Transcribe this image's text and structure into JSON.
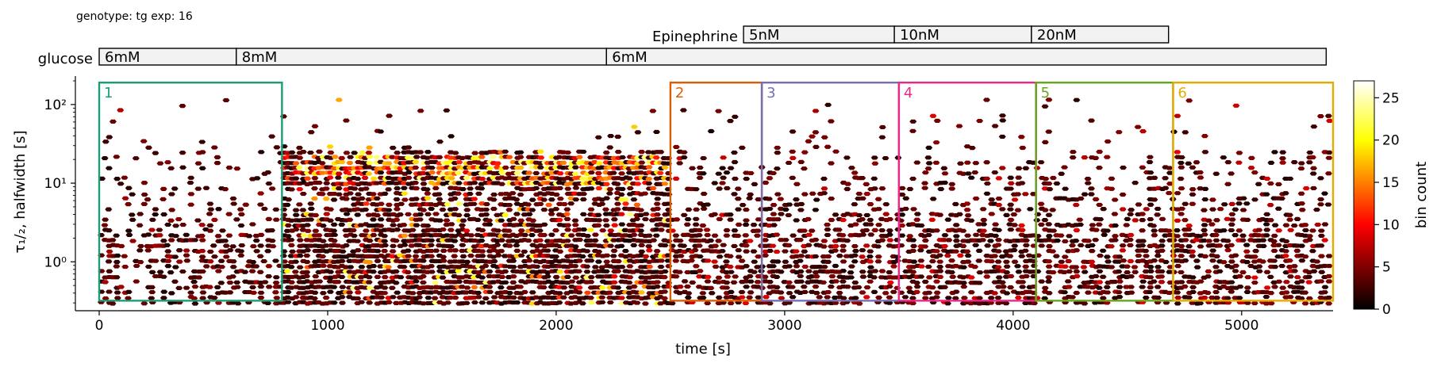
{
  "chart_data": {
    "type": "heatmap",
    "header": "genotype: tg  exp: 16",
    "xlabel": "time [s]",
    "ylabel": "τ₁/₂, halfwidth [s]",
    "x_ticks": [
      0,
      1000,
      2000,
      3000,
      4000,
      5000
    ],
    "y_ticks": [
      {
        "value": 1,
        "label": "10⁰"
      },
      {
        "value": 10,
        "label": "10¹"
      },
      {
        "value": 100,
        "label": "10²"
      }
    ],
    "xlim": [
      0,
      5400
    ],
    "ylim": [
      0.25,
      200
    ],
    "y_scale": "log",
    "colormap": "hot",
    "colorbar": {
      "label": "bin count",
      "min": 0,
      "max": 27,
      "ticks": [
        0,
        5,
        10,
        15,
        20,
        25
      ]
    },
    "glucose": {
      "label": "glucose",
      "segments": [
        {
          "label": "6mM",
          "start": 0,
          "end": 600
        },
        {
          "label": "8mM",
          "start": 600,
          "end": 2220
        },
        {
          "label": "6mM",
          "start": 2220,
          "end": 5370
        }
      ]
    },
    "epinephrine": {
      "label": "Epinephrine",
      "segments": [
        {
          "label": "5nM",
          "start": 2820,
          "end": 3480
        },
        {
          "label": "10nM",
          "start": 3480,
          "end": 4080
        },
        {
          "label": "20nM",
          "start": 4080,
          "end": 4680
        }
      ]
    },
    "regions": [
      {
        "label": "1",
        "start": 0,
        "end": 800,
        "color": "#1b9e77"
      },
      {
        "label": "2",
        "start": 2500,
        "end": 2900,
        "color": "#d95f02"
      },
      {
        "label": "3",
        "start": 2900,
        "end": 3500,
        "color": "#7570b3"
      },
      {
        "label": "4",
        "start": 3500,
        "end": 4100,
        "color": "#e7298a"
      },
      {
        "label": "5",
        "start": 4100,
        "end": 4700,
        "color": "#66a61e"
      },
      {
        "label": "6",
        "start": 4700,
        "end": 5400,
        "color": "#e6ab02"
      }
    ],
    "region_y_range": [
      0.32,
      190
    ],
    "density_profile": [
      {
        "x_from": 0,
        "x_to": 800,
        "low_band": 0.35,
        "high_band": 0.12,
        "max_bin": 7
      },
      {
        "x_from": 800,
        "x_to": 2500,
        "low_band": 0.75,
        "high_band": 0.45,
        "max_bin": 24
      },
      {
        "x_from": 2500,
        "x_to": 5400,
        "low_band": 0.5,
        "high_band": 0.15,
        "max_bin": 9
      }
    ]
  }
}
